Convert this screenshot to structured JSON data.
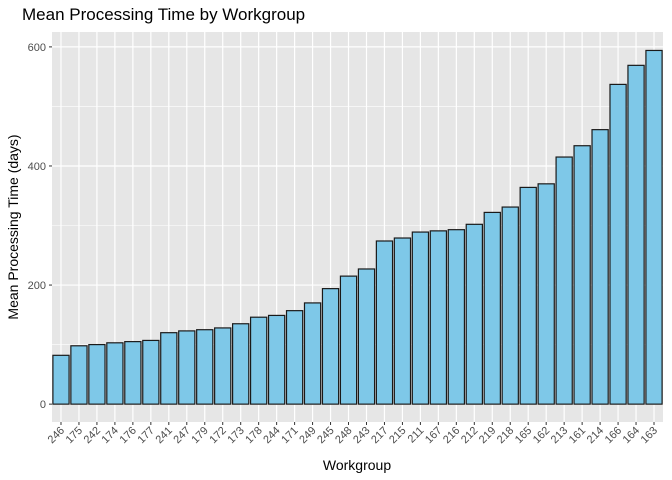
{
  "chart_data": {
    "type": "bar",
    "title": "Mean Processing Time by Workgroup",
    "xlabel": "Workgroup",
    "ylabel": "Mean Processing Time (days)",
    "categories": [
      "246",
      "175",
      "242",
      "174",
      "176",
      "177",
      "241",
      "247",
      "179",
      "172",
      "173",
      "178",
      "244",
      "171",
      "249",
      "245",
      "248",
      "243",
      "217",
      "215",
      "211",
      "167",
      "216",
      "212",
      "219",
      "218",
      "165",
      "162",
      "213",
      "161",
      "214",
      "166",
      "164",
      "163"
    ],
    "values": [
      82,
      98,
      100,
      103,
      105,
      107,
      120,
      123,
      125,
      128,
      135,
      146,
      149,
      157,
      170,
      194,
      215,
      227,
      274,
      279,
      289,
      291,
      293,
      302,
      322,
      331,
      364,
      370,
      415,
      434,
      461,
      537,
      569,
      594
    ],
    "ylim": [
      -30,
      625
    ],
    "yticks": [
      0,
      200,
      400,
      600
    ],
    "grid": true,
    "legend": "none",
    "colors": {
      "bar_fill": "#7ec8e8",
      "bar_stroke": "#1a1a1a",
      "panel_bg": "#e6e6e6",
      "grid": "#ffffff",
      "tick_text": "#4d4d4d"
    }
  }
}
